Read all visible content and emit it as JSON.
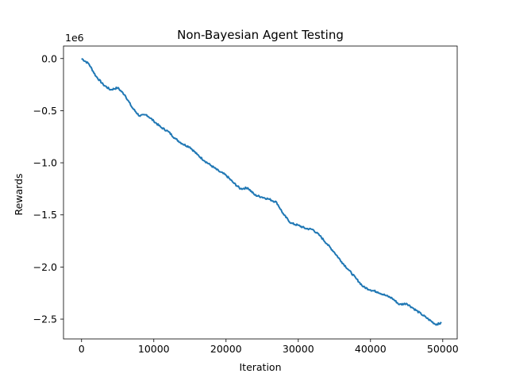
{
  "chart_data": {
    "type": "line",
    "title": "Non-Bayesian Agent Testing",
    "xlabel": "Iteration",
    "ylabel": "Rewards",
    "y_offset_label": "1e6",
    "xlim": [
      -2500,
      52000
    ],
    "ylim": [
      -2.69,
      0.12
    ],
    "x_ticks": [
      0,
      10000,
      20000,
      30000,
      40000,
      50000
    ],
    "x_tick_labels": [
      "0",
      "10000",
      "20000",
      "30000",
      "40000",
      "50000"
    ],
    "y_ticks": [
      0.0,
      -0.5,
      -1.0,
      -1.5,
      -2.0,
      -2.5
    ],
    "y_tick_labels": [
      "0.0",
      "−0.5",
      "−1.0",
      "−1.5",
      "−2.0",
      "−2.5"
    ],
    "grid": false,
    "series": [
      {
        "color": "#1f77b4",
        "x": [
          0,
          1000,
          2000,
          3000,
          4000,
          5000,
          6000,
          7000,
          8000,
          9000,
          10000,
          11000,
          12000,
          13000,
          14000,
          15000,
          16000,
          17000,
          18000,
          19000,
          20000,
          21000,
          22000,
          23000,
          24000,
          25000,
          26000,
          27000,
          28000,
          29000,
          30000,
          31000,
          32000,
          33000,
          34000,
          35000,
          36000,
          37000,
          38000,
          39000,
          40000,
          41000,
          42000,
          43000,
          44000,
          45000,
          46000,
          47000,
          48000,
          49000,
          49800
        ],
        "y": [
          0.0,
          -0.05,
          -0.17,
          -0.25,
          -0.3,
          -0.28,
          -0.35,
          -0.47,
          -0.55,
          -0.54,
          -0.6,
          -0.66,
          -0.7,
          -0.77,
          -0.82,
          -0.85,
          -0.92,
          -0.98,
          -1.03,
          -1.08,
          -1.12,
          -1.19,
          -1.25,
          -1.24,
          -1.31,
          -1.33,
          -1.35,
          -1.38,
          -1.5,
          -1.58,
          -1.6,
          -1.63,
          -1.64,
          -1.7,
          -1.78,
          -1.86,
          -1.95,
          -2.03,
          -2.11,
          -2.19,
          -2.22,
          -2.24,
          -2.27,
          -2.3,
          -2.36,
          -2.35,
          -2.4,
          -2.45,
          -2.5,
          -2.55,
          -2.54
        ]
      }
    ]
  }
}
